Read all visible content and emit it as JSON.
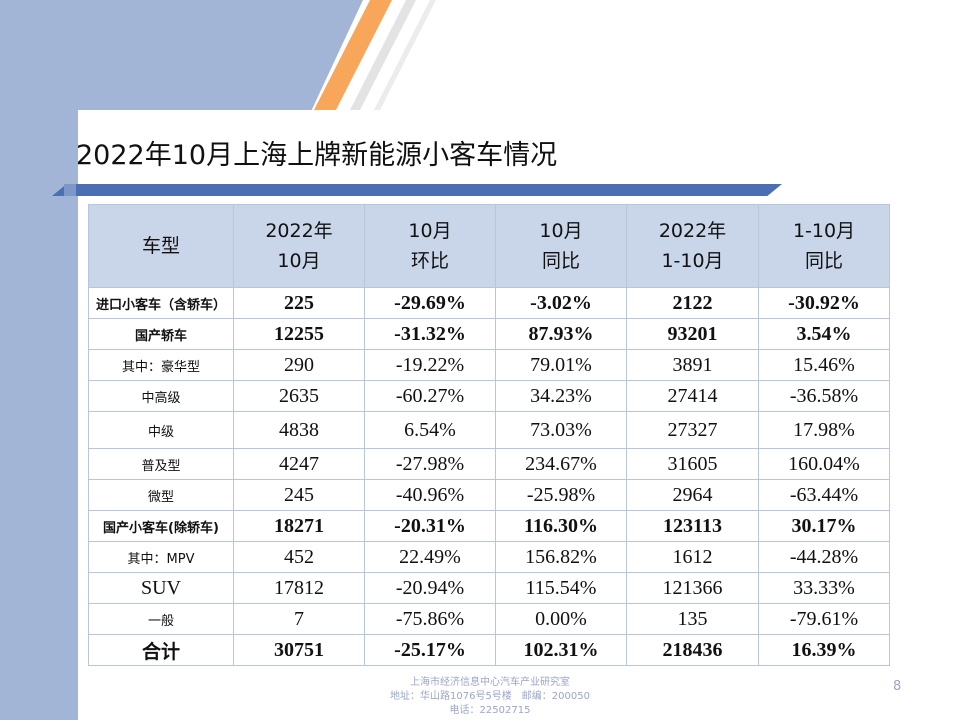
{
  "title": "2022年10月上海上牌新能源小客车情况",
  "table": {
    "headers": [
      [
        "车型"
      ],
      [
        "2022年",
        "10月"
      ],
      [
        "10月",
        "环比"
      ],
      [
        "10月",
        "同比"
      ],
      [
        "2022年",
        "1-10月"
      ],
      [
        "1-10月",
        "同比"
      ]
    ],
    "rows": [
      {
        "cells": [
          "进口小客车（含轿车）",
          "225",
          "-29.69%",
          "-3.02%",
          "2122",
          "-30.92%"
        ],
        "bold": true
      },
      {
        "cells": [
          "国产轿车",
          "12255",
          "-31.32%",
          "87.93%",
          "93201",
          "3.54%"
        ],
        "bold": true
      },
      {
        "cells": [
          "其中：豪华型",
          "290",
          "-19.22%",
          "79.01%",
          "3891",
          "15.46%"
        ],
        "bold": false
      },
      {
        "cells": [
          "中高级",
          "2635",
          "-60.27%",
          "34.23%",
          "27414",
          "-36.58%"
        ],
        "bold": false
      },
      {
        "cells": [
          "中级",
          "4838",
          "6.54%",
          "73.03%",
          "27327",
          "17.98%"
        ],
        "bold": false,
        "tall": true
      },
      {
        "cells": [
          "普及型",
          "4247",
          "-27.98%",
          "234.67%",
          "31605",
          "160.04%"
        ],
        "bold": false
      },
      {
        "cells": [
          "微型",
          "245",
          "-40.96%",
          "-25.98%",
          "2964",
          "-63.44%"
        ],
        "bold": false
      },
      {
        "cells": [
          "国产小客车(除轿车)",
          "18271",
          "-20.31%",
          "116.30%",
          "123113",
          "30.17%"
        ],
        "bold": true
      },
      {
        "cells": [
          "其中：MPV",
          "452",
          "22.49%",
          "156.82%",
          "1612",
          "-44.28%"
        ],
        "bold": false
      },
      {
        "cells": [
          "SUV",
          "17812",
          "-20.94%",
          "115.54%",
          "121366",
          "33.33%"
        ],
        "bold": false,
        "serifLabel": true
      },
      {
        "cells": [
          "一般",
          "7",
          "-75.86%",
          "0.00%",
          "135",
          "-79.61%"
        ],
        "bold": false
      },
      {
        "cells": [
          "合计",
          "30751",
          "-25.17%",
          "102.31%",
          "218436",
          "16.39%"
        ],
        "bold": true,
        "bigLabel": true
      }
    ]
  },
  "footer": {
    "line1": "上海市经济信息中心汽车产业研究室",
    "line2": "地址：华山路1076号5号楼　邮编：200050",
    "line3": "电话：22502715"
  },
  "page_number": "8"
}
